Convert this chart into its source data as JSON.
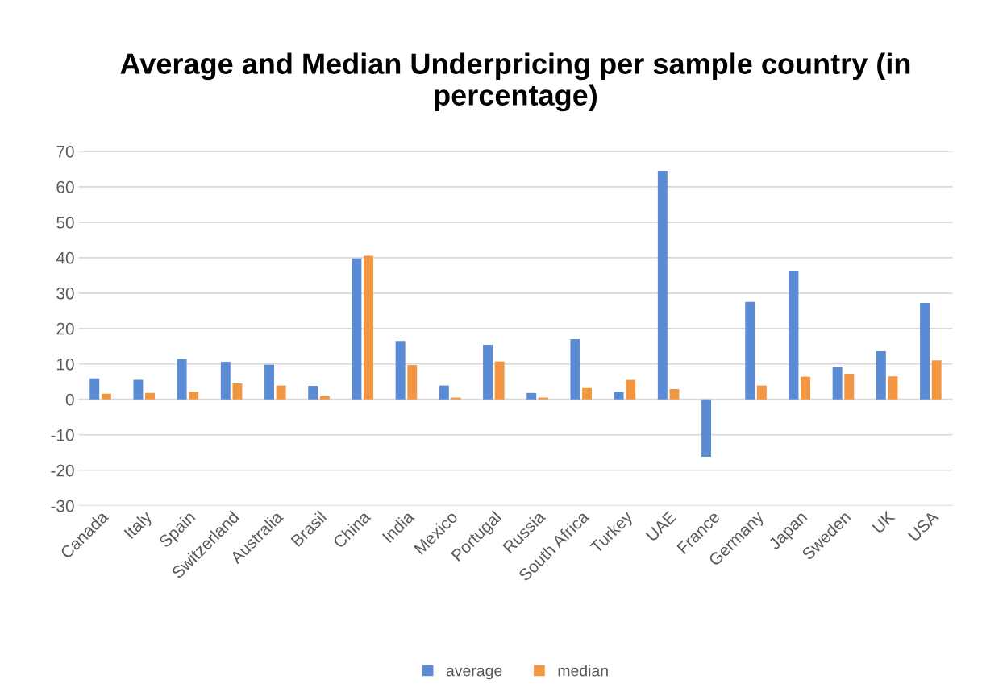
{
  "chart_data": {
    "type": "bar",
    "title": "Average and Median Underpricing per sample country (in percentage)",
    "categories": [
      "Canada",
      "Italy",
      "Spain",
      "Switzerland",
      "Australia",
      "Brasil",
      "China",
      "India",
      "Mexico",
      "Portugal",
      "Russia",
      "South Africa",
      "Turkey",
      "UAE",
      "France",
      "Germany",
      "Japan",
      "Sweden",
      "UK",
      "USA"
    ],
    "series": [
      {
        "name": "average",
        "color": "#5b8bd4",
        "values": [
          5.9,
          5.5,
          11.4,
          10.6,
          9.8,
          3.8,
          39.8,
          16.5,
          3.9,
          15.4,
          1.8,
          17.0,
          2.1,
          64.5,
          -16.2,
          27.5,
          36.3,
          9.2,
          13.6,
          27.2
        ]
      },
      {
        "name": "median",
        "color": "#f39642",
        "values": [
          1.6,
          1.8,
          2.1,
          4.5,
          3.9,
          0.9,
          40.5,
          9.7,
          0.5,
          10.7,
          0.5,
          3.4,
          5.5,
          2.9,
          null,
          3.9,
          6.4,
          7.2,
          6.5,
          11.0
        ]
      }
    ],
    "ylim": [
      -30,
      70
    ],
    "yticks": [
      -30,
      -20,
      -10,
      0,
      10,
      20,
      30,
      40,
      50,
      60,
      70
    ],
    "grid": "y",
    "legend": "bottom"
  }
}
